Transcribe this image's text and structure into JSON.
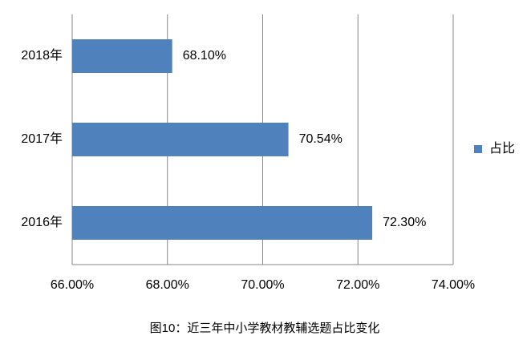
{
  "chart_data": {
    "type": "bar",
    "orientation": "horizontal",
    "caption": "图10：近三年中小学教材教辅选题占比变化",
    "categories": [
      "2016年",
      "2017年",
      "2018年"
    ],
    "series": [
      {
        "name": "占比",
        "color": "#4f81bd",
        "values": [
          72.3,
          70.54,
          68.1
        ],
        "value_labels": [
          "72.30%",
          "70.54%",
          "68.10%"
        ]
      }
    ],
    "xlim": [
      66,
      74
    ],
    "xticks": [
      {
        "value": 66,
        "label": "66.00%"
      },
      {
        "value": 68,
        "label": "68.00%"
      },
      {
        "value": 70,
        "label": "70.00%"
      },
      {
        "value": 72,
        "label": "72.00%"
      },
      {
        "value": 74,
        "label": "74.00%"
      }
    ],
    "grid": true,
    "legend": "right"
  }
}
